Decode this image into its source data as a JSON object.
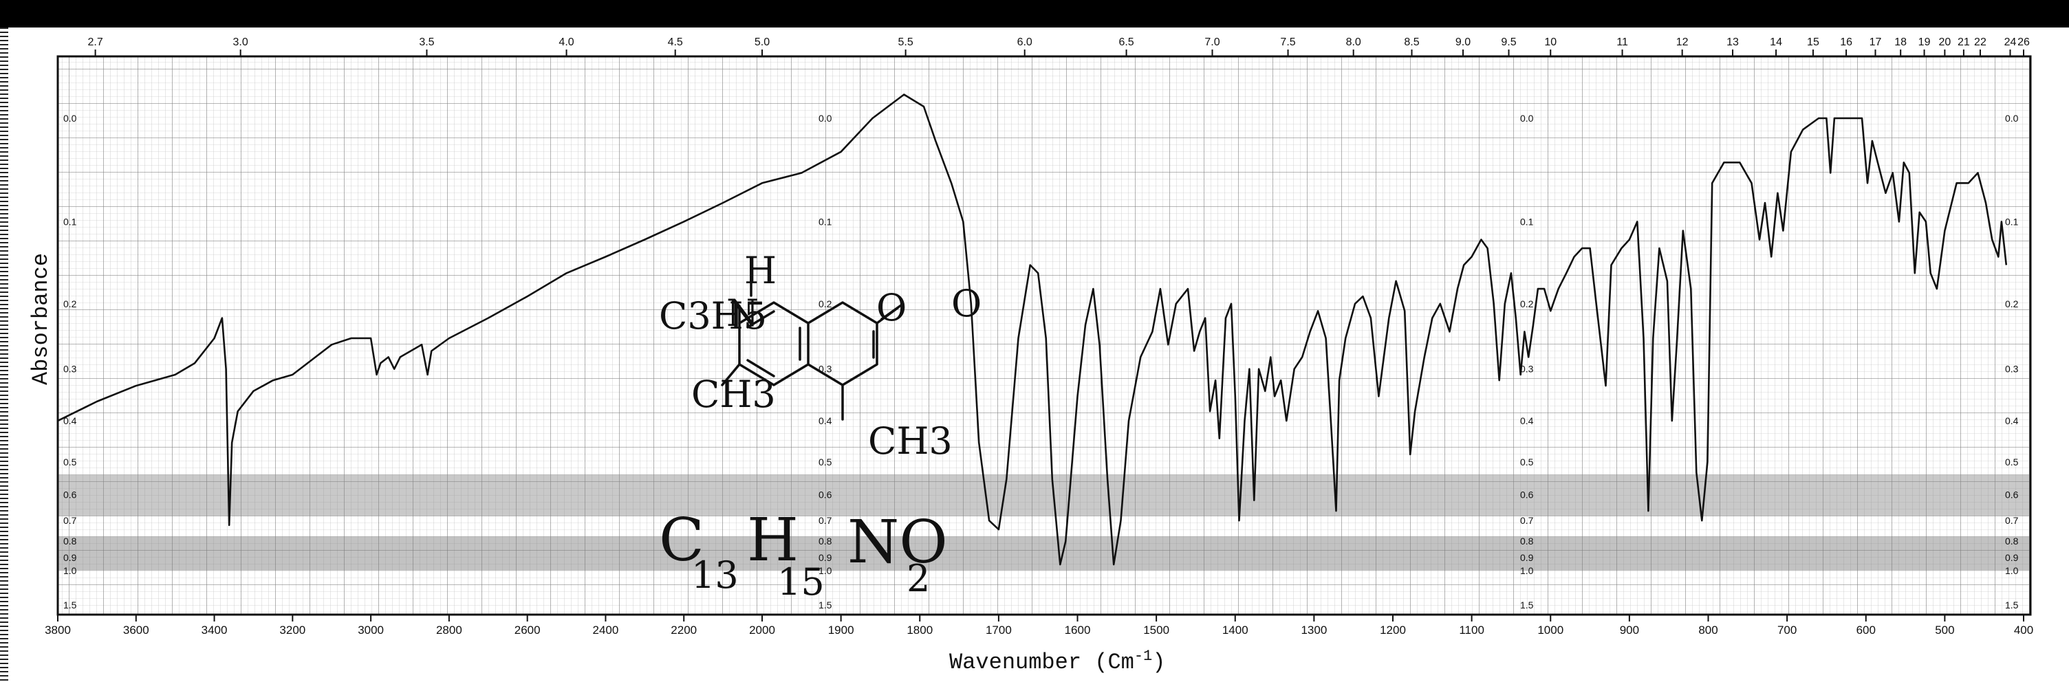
{
  "chart_data": {
    "type": "line",
    "xlabel": "Wavenumber (cm-1)",
    "ylabel": "Absorbance",
    "xlim": [
      3800,
      400
    ],
    "ylim": [
      0,
      1.6
    ],
    "grid": true,
    "bottom_ticks": [
      {
        "v": 3800,
        "label": "3800"
      },
      {
        "v": 3600,
        "label": "3600"
      },
      {
        "v": 3400,
        "label": "3400"
      },
      {
        "v": 3200,
        "label": "3200"
      },
      {
        "v": 3000,
        "label": "3000"
      },
      {
        "v": 2800,
        "label": "2800"
      },
      {
        "v": 2600,
        "label": "2600"
      },
      {
        "v": 2400,
        "label": "2400"
      },
      {
        "v": 2200,
        "label": "2200"
      },
      {
        "v": 2000,
        "label": "2000"
      },
      {
        "v": 1900,
        "label": "1900"
      },
      {
        "v": 1800,
        "label": "1800"
      },
      {
        "v": 1700,
        "label": "1700"
      },
      {
        "v": 1600,
        "label": "1600"
      },
      {
        "v": 1500,
        "label": "1500"
      },
      {
        "v": 1400,
        "label": "1400"
      },
      {
        "v": 1300,
        "label": "1300"
      },
      {
        "v": 1200,
        "label": "1200"
      },
      {
        "v": 1100,
        "label": "1100"
      },
      {
        "v": 1000,
        "label": "1000"
      },
      {
        "v": 900,
        "label": "900"
      },
      {
        "v": 800,
        "label": "800"
      },
      {
        "v": 700,
        "label": "700"
      },
      {
        "v": 600,
        "label": "600"
      },
      {
        "v": 500,
        "label": "500"
      },
      {
        "v": 400,
        "label": "400"
      }
    ],
    "top_ticks": [
      {
        "v": 3704,
        "label": "2.7"
      },
      {
        "v": 3333,
        "label": "3.0"
      },
      {
        "v": 2857,
        "label": "3.5"
      },
      {
        "v": 2500,
        "label": "4.0"
      },
      {
        "v": 2222,
        "label": "4.5"
      },
      {
        "v": 2000,
        "label": "5.0"
      },
      {
        "v": 1818,
        "label": "5.5"
      },
      {
        "v": 1667,
        "label": "6.0"
      },
      {
        "v": 1538,
        "label": "6.5"
      },
      {
        "v": 1429,
        "label": "7.0"
      },
      {
        "v": 1333,
        "label": "7.5"
      },
      {
        "v": 1250,
        "label": "8.0"
      },
      {
        "v": 1176,
        "label": "8.5"
      },
      {
        "v": 1111,
        "label": "9.0"
      },
      {
        "v": 1053,
        "label": "9.5"
      },
      {
        "v": 1000,
        "label": "10"
      },
      {
        "v": 909,
        "label": "11"
      },
      {
        "v": 833,
        "label": "12"
      },
      {
        "v": 769,
        "label": "13"
      },
      {
        "v": 714,
        "label": "14"
      },
      {
        "v": 667,
        "label": "15"
      },
      {
        "v": 625,
        "label": "16"
      },
      {
        "v": 588,
        "label": "17"
      },
      {
        "v": 556,
        "label": "18"
      },
      {
        "v": 526,
        "label": "19"
      },
      {
        "v": 500,
        "label": "20"
      },
      {
        "v": 476,
        "label": "21"
      },
      {
        "v": 455,
        "label": "22"
      },
      {
        "v": 417,
        "label": "24"
      },
      {
        "v": 400,
        "label": "26"
      }
    ],
    "absorbance_ticks": [
      "0.0",
      "0.1",
      "0.2",
      "0.3",
      "0.4",
      "0.5",
      "0.6",
      "0.7",
      "0.8",
      "0.9",
      "1.0",
      "1.5"
    ],
    "absorbance_scale_values": [
      0.0,
      0.1,
      0.2,
      0.3,
      0.4,
      0.5,
      0.6,
      0.7,
      0.8,
      0.9,
      1.0,
      1.5
    ],
    "series": [
      {
        "points": [
          [
            3800,
            0.4
          ],
          [
            3700,
            0.36
          ],
          [
            3600,
            0.33
          ],
          [
            3500,
            0.31
          ],
          [
            3450,
            0.29
          ],
          [
            3400,
            0.25
          ],
          [
            3380,
            0.22
          ],
          [
            3370,
            0.3
          ],
          [
            3362,
            0.72
          ],
          [
            3355,
            0.45
          ],
          [
            3340,
            0.38
          ],
          [
            3300,
            0.34
          ],
          [
            3250,
            0.32
          ],
          [
            3200,
            0.31
          ],
          [
            3100,
            0.26
          ],
          [
            3050,
            0.25
          ],
          [
            3000,
            0.25
          ],
          [
            2985,
            0.31
          ],
          [
            2975,
            0.29
          ],
          [
            2955,
            0.28
          ],
          [
            2940,
            0.3
          ],
          [
            2925,
            0.28
          ],
          [
            2870,
            0.26
          ],
          [
            2855,
            0.31
          ],
          [
            2845,
            0.27
          ],
          [
            2800,
            0.25
          ],
          [
            2700,
            0.22
          ],
          [
            2600,
            0.19
          ],
          [
            2500,
            0.16
          ],
          [
            2400,
            0.14
          ],
          [
            2300,
            0.12
          ],
          [
            2200,
            0.1
          ],
          [
            2100,
            0.08
          ],
          [
            2000,
            0.06
          ],
          [
            1950,
            0.05
          ],
          [
            1900,
            0.03
          ],
          [
            1860,
            0.0
          ],
          [
            1820,
            -0.02
          ],
          [
            1795,
            -0.01
          ],
          [
            1780,
            0.02
          ],
          [
            1760,
            0.06
          ],
          [
            1745,
            0.1
          ],
          [
            1735,
            0.2
          ],
          [
            1725,
            0.45
          ],
          [
            1712,
            0.7
          ],
          [
            1700,
            0.74
          ],
          [
            1690,
            0.55
          ],
          [
            1675,
            0.25
          ],
          [
            1660,
            0.15
          ],
          [
            1650,
            0.16
          ],
          [
            1640,
            0.25
          ],
          [
            1632,
            0.55
          ],
          [
            1622,
            0.95
          ],
          [
            1615,
            0.8
          ],
          [
            1600,
            0.35
          ],
          [
            1590,
            0.23
          ],
          [
            1580,
            0.18
          ],
          [
            1572,
            0.26
          ],
          [
            1562,
            0.55
          ],
          [
            1554,
            0.95
          ],
          [
            1545,
            0.7
          ],
          [
            1535,
            0.4
          ],
          [
            1520,
            0.28
          ],
          [
            1505,
            0.24
          ],
          [
            1495,
            0.18
          ],
          [
            1485,
            0.26
          ],
          [
            1475,
            0.2
          ],
          [
            1460,
            0.18
          ],
          [
            1452,
            0.27
          ],
          [
            1445,
            0.24
          ],
          [
            1438,
            0.22
          ],
          [
            1432,
            0.38
          ],
          [
            1425,
            0.32
          ],
          [
            1420,
            0.44
          ],
          [
            1412,
            0.22
          ],
          [
            1405,
            0.2
          ],
          [
            1400,
            0.35
          ],
          [
            1395,
            0.7
          ],
          [
            1388,
            0.4
          ],
          [
            1382,
            0.3
          ],
          [
            1376,
            0.62
          ],
          [
            1370,
            0.3
          ],
          [
            1362,
            0.34
          ],
          [
            1355,
            0.28
          ],
          [
            1350,
            0.35
          ],
          [
            1342,
            0.32
          ],
          [
            1335,
            0.4
          ],
          [
            1325,
            0.3
          ],
          [
            1315,
            0.28
          ],
          [
            1305,
            0.24
          ],
          [
            1295,
            0.21
          ],
          [
            1285,
            0.25
          ],
          [
            1278,
            0.42
          ],
          [
            1272,
            0.66
          ],
          [
            1268,
            0.32
          ],
          [
            1260,
            0.25
          ],
          [
            1248,
            0.2
          ],
          [
            1238,
            0.19
          ],
          [
            1228,
            0.22
          ],
          [
            1218,
            0.35
          ],
          [
            1205,
            0.22
          ],
          [
            1196,
            0.17
          ],
          [
            1185,
            0.21
          ],
          [
            1178,
            0.48
          ],
          [
            1172,
            0.38
          ],
          [
            1160,
            0.28
          ],
          [
            1150,
            0.22
          ],
          [
            1140,
            0.2
          ],
          [
            1128,
            0.24
          ],
          [
            1118,
            0.18
          ],
          [
            1110,
            0.15
          ],
          [
            1100,
            0.14
          ],
          [
            1088,
            0.12
          ],
          [
            1080,
            0.13
          ],
          [
            1072,
            0.2
          ],
          [
            1065,
            0.32
          ],
          [
            1058,
            0.2
          ],
          [
            1050,
            0.16
          ],
          [
            1044,
            0.22
          ],
          [
            1038,
            0.31
          ],
          [
            1033,
            0.24
          ],
          [
            1028,
            0.28
          ],
          [
            1022,
            0.23
          ],
          [
            1016,
            0.18
          ],
          [
            1008,
            0.18
          ],
          [
            1000,
            0.21
          ],
          [
            990,
            0.18
          ],
          [
            980,
            0.16
          ],
          [
            970,
            0.14
          ],
          [
            960,
            0.13
          ],
          [
            950,
            0.13
          ],
          [
            942,
            0.2
          ],
          [
            936,
            0.26
          ],
          [
            930,
            0.33
          ],
          [
            923,
            0.15
          ],
          [
            910,
            0.13
          ],
          [
            900,
            0.12
          ],
          [
            890,
            0.1
          ],
          [
            882,
            0.25
          ],
          [
            876,
            0.66
          ],
          [
            870,
            0.25
          ],
          [
            862,
            0.13
          ],
          [
            852,
            0.17
          ],
          [
            846,
            0.4
          ],
          [
            840,
            0.26
          ],
          [
            832,
            0.11
          ],
          [
            822,
            0.18
          ],
          [
            815,
            0.53
          ],
          [
            808,
            0.7
          ],
          [
            801,
            0.5
          ],
          [
            795,
            0.06
          ],
          [
            780,
            0.04
          ],
          [
            760,
            0.04
          ],
          [
            745,
            0.06
          ],
          [
            735,
            0.12
          ],
          [
            728,
            0.08
          ],
          [
            720,
            0.14
          ],
          [
            712,
            0.07
          ],
          [
            705,
            0.11
          ],
          [
            695,
            0.03
          ],
          [
            680,
            0.01
          ],
          [
            660,
            0.0
          ],
          [
            650,
            0.0
          ],
          [
            645,
            0.05
          ],
          [
            640,
            0.0
          ],
          [
            620,
            0.0
          ],
          [
            605,
            0.0
          ],
          [
            598,
            0.06
          ],
          [
            592,
            0.02
          ],
          [
            585,
            0.04
          ],
          [
            575,
            0.07
          ],
          [
            566,
            0.05
          ],
          [
            558,
            0.1
          ],
          [
            552,
            0.04
          ],
          [
            545,
            0.05
          ],
          [
            538,
            0.16
          ],
          [
            532,
            0.09
          ],
          [
            524,
            0.1
          ],
          [
            518,
            0.16
          ],
          [
            510,
            0.18
          ],
          [
            500,
            0.11
          ],
          [
            485,
            0.06
          ],
          [
            470,
            0.06
          ],
          [
            458,
            0.05
          ],
          [
            448,
            0.08
          ],
          [
            440,
            0.12
          ],
          [
            432,
            0.14
          ],
          [
            428,
            0.1
          ],
          [
            422,
            0.15
          ]
        ]
      }
    ]
  },
  "annotations": {
    "structure_nh_h": "H",
    "structure_c3h5": "C3H5",
    "structure_n": "N",
    "structure_o_ring": "O",
    "structure_o_keto": "O",
    "structure_ch3_left": "CH3",
    "structure_ch3_bottom": "CH3",
    "formula_c": "C",
    "formula_c_sub": "13",
    "formula_h": "H",
    "formula_h_sub": "15",
    "formula_no": "NO",
    "formula_no_sub": "2",
    "axis_x_title": "Wavenumber (Cm",
    "axis_x_exp": "-1",
    "axis_x_close": ")",
    "axis_y_title": "Absorbance"
  },
  "colors": {
    "ink": "#111111",
    "grid": "#555555",
    "band": "#000000"
  }
}
